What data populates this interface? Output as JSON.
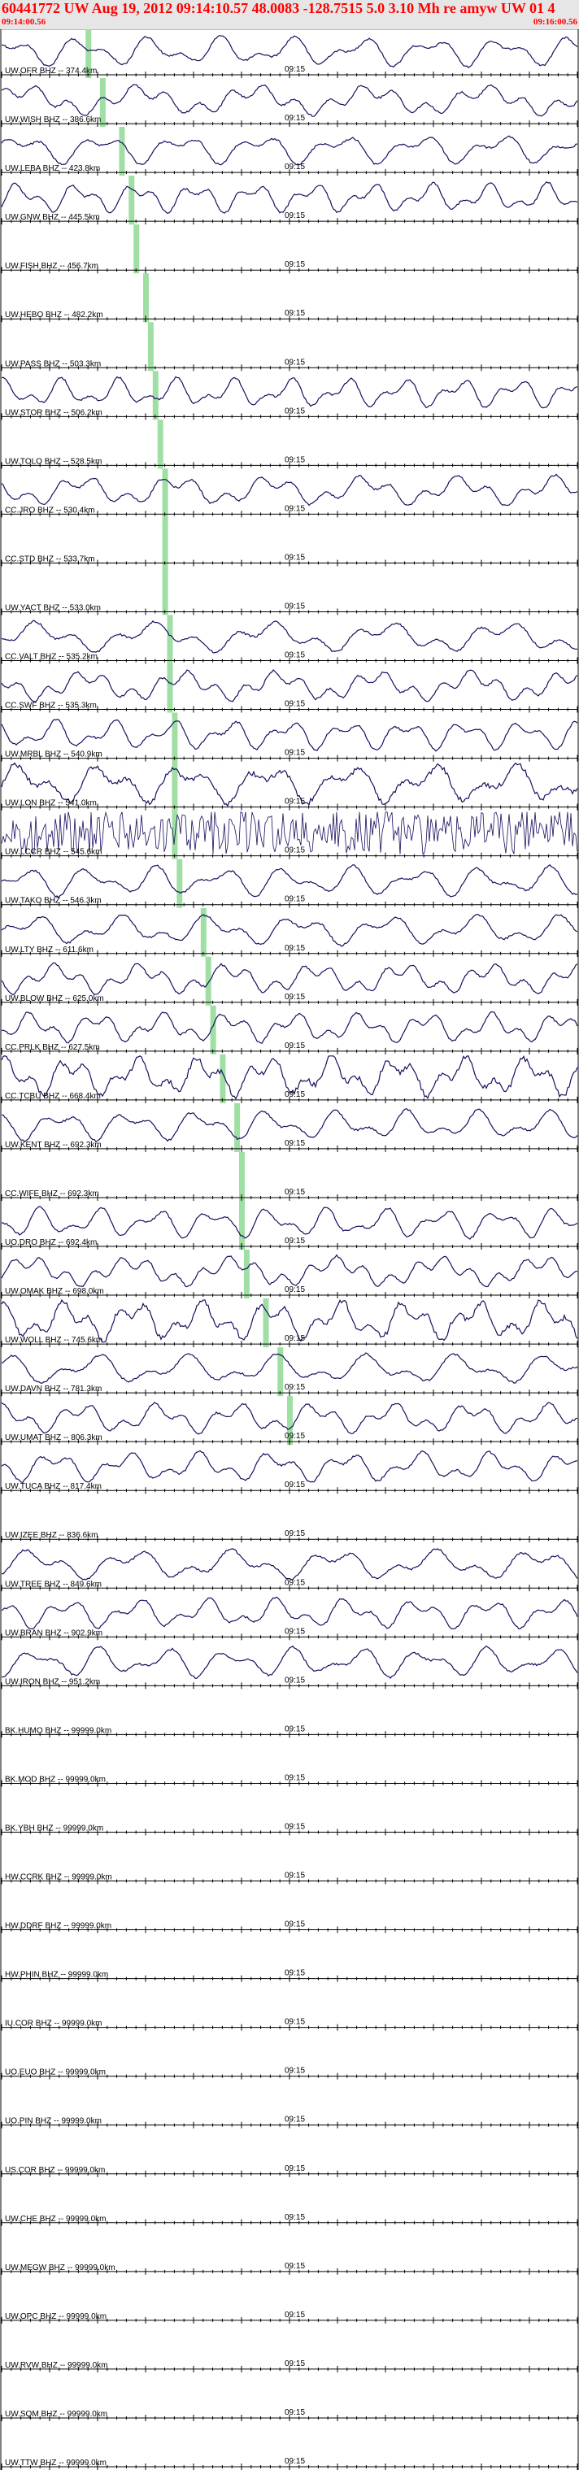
{
  "header": {
    "title": "60441772 UW Aug 19, 2012 09:14:10.57   48.0083 -128.7515  5.0 3.10 Mh re amyw UW 01   4",
    "start_time": "09:14:00.56",
    "end_time": "09:16:00.56"
  },
  "colors": {
    "title": "#ff0000",
    "trace": "#1a0d5e",
    "pick": "#9fdfa4",
    "axis": "#000000"
  },
  "chart_data": {
    "type": "line",
    "tick_label": "09:15",
    "window_seconds": 120,
    "traces": [
      {
        "label": "UW.OFR BHZ -- 374.4km",
        "amp": "medium",
        "pick_s": 18
      },
      {
        "label": "UW.WISH BHZ -- 386.6km",
        "amp": "medium",
        "pick_s": 21
      },
      {
        "label": "UW.LEBA BHZ -- 423.8km",
        "amp": "medium",
        "pick_s": 25
      },
      {
        "label": "UW.GNW BHZ -- 445.5km",
        "amp": "medium",
        "pick_s": 27
      },
      {
        "label": "UW.FISH BHZ -- 456.7km",
        "amp": "flat",
        "pick_s": 28
      },
      {
        "label": "UW.HEBO BHZ -- 482.2km",
        "amp": "flat",
        "pick_s": 30
      },
      {
        "label": "UW.PASS BHZ -- 503.3km",
        "amp": "flat",
        "pick_s": 31
      },
      {
        "label": "UW.STOR BHZ -- 506.2km",
        "amp": "medium",
        "pick_s": 32
      },
      {
        "label": "UW.TOLO BHZ -- 528.5km",
        "amp": "flat",
        "pick_s": 33
      },
      {
        "label": "CC.JRO BHZ -- 530.4km",
        "amp": "medium",
        "pick_s": 34
      },
      {
        "label": "CC.STD BHZ -- 533.7km",
        "amp": "flat",
        "pick_s": 34
      },
      {
        "label": "UW.YACT BHZ -- 533.0km",
        "amp": "flat",
        "pick_s": 34
      },
      {
        "label": "CC.VALT BHZ -- 535.2km",
        "amp": "medium",
        "pick_s": 35
      },
      {
        "label": "CC.SWF BHZ -- 535.3km",
        "amp": "medium",
        "pick_s": 35
      },
      {
        "label": "UW.MRBL BHZ -- 540.9km",
        "amp": "medium",
        "pick_s": 36
      },
      {
        "label": "UW.LON BHZ -- 541.0km",
        "amp": "large",
        "pick_s": 36
      },
      {
        "label": "UW.LCCR BHZ -- 545.6km",
        "amp": "saturated",
        "pick_s": 36
      },
      {
        "label": "UW.TAKO BHZ -- 546.3km",
        "amp": "medium",
        "pick_s": 37
      },
      {
        "label": "UW.LTY BHZ -- 611.6km",
        "amp": "medium",
        "pick_s": 42
      },
      {
        "label": "UW.BLOW BHZ -- 625.0km",
        "amp": "medium",
        "pick_s": 43
      },
      {
        "label": "CC.PRLK BHZ -- 627.5km",
        "amp": "medium",
        "pick_s": 44
      },
      {
        "label": "CC.TCBU BHZ -- 668.4km",
        "amp": "large",
        "pick_s": 46
      },
      {
        "label": "UW.KENT BHZ -- 692.3km",
        "amp": "medium",
        "pick_s": 49
      },
      {
        "label": "CC.WIFE BHZ -- 692.3km",
        "amp": "flat",
        "pick_s": 50
      },
      {
        "label": "UO.DRO BHZ -- 692.4km",
        "amp": "medium",
        "pick_s": 50
      },
      {
        "label": "UW.OMAK BHZ -- 698.0km",
        "amp": "medium",
        "pick_s": 51
      },
      {
        "label": "UW.WOLL BHZ -- 745.6km",
        "amp": "large",
        "pick_s": 55
      },
      {
        "label": "UW.DAVN BHZ -- 781.3km",
        "amp": "medium",
        "pick_s": 58
      },
      {
        "label": "UW.UMAT BHZ -- 806.3km",
        "amp": "medium",
        "pick_s": 60
      },
      {
        "label": "UW.TUCA BHZ -- 817.4km",
        "amp": "medium",
        "pick_s": null
      },
      {
        "label": "UW.IZEE BHZ -- 836.6km",
        "amp": "flat",
        "pick_s": null
      },
      {
        "label": "UW.TREE BHZ -- 849.6km",
        "amp": "medium",
        "pick_s": null
      },
      {
        "label": "UW.BRAN BHZ -- 902.9km",
        "amp": "medium",
        "pick_s": null
      },
      {
        "label": "UW.IRON BHZ -- 951.2km",
        "amp": "medium",
        "pick_s": null
      },
      {
        "label": "BK.HUMO BHZ -- 99999.0km",
        "amp": "flat",
        "pick_s": null
      },
      {
        "label": "BK.MOD BHZ -- 99999.0km",
        "amp": "flat",
        "pick_s": null
      },
      {
        "label": "BK.YBH BHZ -- 99999.0km",
        "amp": "flat",
        "pick_s": null
      },
      {
        "label": "HW.CCRK BHZ -- 99999.0km",
        "amp": "flat",
        "pick_s": null
      },
      {
        "label": "HW.DDRF BHZ -- 99999.0km",
        "amp": "flat",
        "pick_s": null
      },
      {
        "label": "HW.PHIN BHZ -- 99999.0km",
        "amp": "flat",
        "pick_s": null
      },
      {
        "label": "IU.COR BHZ -- 99999.0km",
        "amp": "flat",
        "pick_s": null
      },
      {
        "label": "UO.EUO BHZ -- 99999.0km",
        "amp": "flat",
        "pick_s": null
      },
      {
        "label": "UO.PIN BHZ -- 99999.0km",
        "amp": "flat",
        "pick_s": null
      },
      {
        "label": "US.COR BHZ -- 99999.0km",
        "amp": "flat",
        "pick_s": null
      },
      {
        "label": "UW.CHE BHZ -- 99999.0km",
        "amp": "flat",
        "pick_s": null
      },
      {
        "label": "UW.MEGW BHZ -- 99999.0km",
        "amp": "flat",
        "pick_s": null
      },
      {
        "label": "UW.OPC BHZ -- 99999.0km",
        "amp": "flat",
        "pick_s": null
      },
      {
        "label": "UW.RVW BHZ -- 99999.0km",
        "amp": "flat",
        "pick_s": null
      },
      {
        "label": "UW.SQM BHZ -- 99999.0km",
        "amp": "flat",
        "pick_s": null
      },
      {
        "label": "UW.TTW BHZ -- 99999.0km",
        "amp": "flat",
        "pick_s": null
      }
    ]
  }
}
